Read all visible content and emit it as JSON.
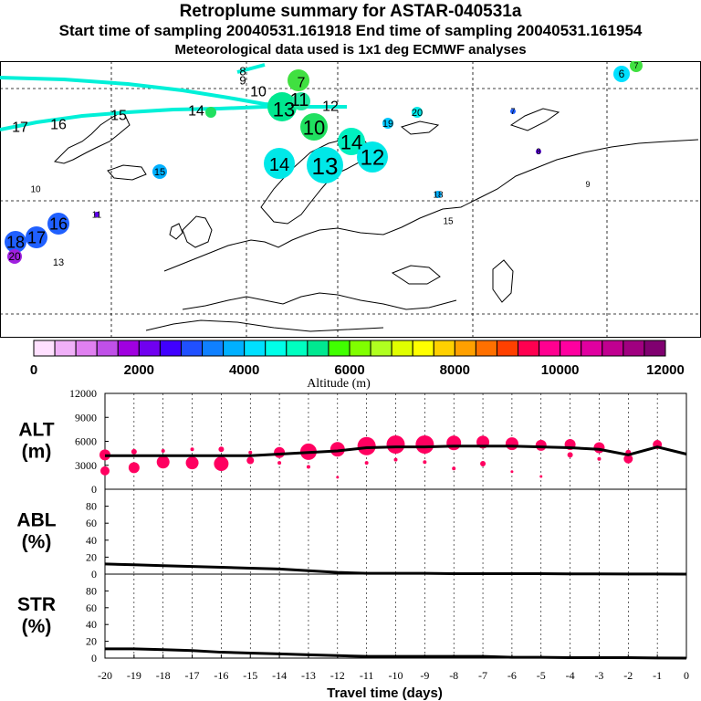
{
  "header": {
    "title": "Retroplume summary for ASTAR-040531a",
    "sampling": "Start time of sampling 20040531.161918      End time of sampling 20040531.161954",
    "met": "Meteorological data used is 1x1 deg ECMWF analyses"
  },
  "colorbar": {
    "label": "Altitude (m)",
    "ticks": [
      "0",
      "2000",
      "4000",
      "6000",
      "8000",
      "10000",
      "12000"
    ],
    "colors": [
      "#ffe0ff",
      "#f0b0f8",
      "#e080f0",
      "#c050e8",
      "#a000e0",
      "#7000f0",
      "#4000ff",
      "#2050ff",
      "#1080ff",
      "#00b0ff",
      "#00e0ff",
      "#00ffe8",
      "#00ffc0",
      "#00e890",
      "#40ff00",
      "#80ff00",
      "#b0ff20",
      "#e0ff00",
      "#ffff00",
      "#ffd000",
      "#ffa000",
      "#ff7000",
      "#ff4000",
      "#ff0050",
      "#ff0090",
      "#ff00a0",
      "#e000a0",
      "#c00090",
      "#a00080",
      "#800070"
    ]
  },
  "map": {
    "labels": [
      {
        "t": "17",
        "x": 22,
        "y": 139,
        "s": 16
      },
      {
        "t": "16",
        "x": 64,
        "y": 136,
        "s": 16
      },
      {
        "t": "15",
        "x": 130,
        "y": 126,
        "s": 16
      },
      {
        "t": "14",
        "x": 215,
        "y": 121,
        "s": 16
      },
      {
        "t": "8",
        "x": 266,
        "y": 78,
        "s": 13
      },
      {
        "t": "9",
        "x": 266,
        "y": 88,
        "s": 13
      },
      {
        "t": "10",
        "x": 283,
        "y": 100,
        "s": 16
      },
      {
        "t": "11",
        "x": 328,
        "y": 109,
        "s": 20
      },
      {
        "t": "12",
        "x": 362,
        "y": 116,
        "s": 16
      },
      {
        "t": "13",
        "x": 311,
        "y": 120,
        "s": 22
      },
      {
        "t": "7",
        "x": 330,
        "y": 90,
        "s": 16
      },
      {
        "t": "10",
        "x": 344,
        "y": 140,
        "s": 22
      },
      {
        "t": "14",
        "x": 385,
        "y": 156,
        "s": 22
      },
      {
        "t": "14",
        "x": 306,
        "y": 180,
        "s": 20
      },
      {
        "t": "13",
        "x": 356,
        "y": 182,
        "s": 26
      },
      {
        "t": "12",
        "x": 408,
        "y": 172,
        "s": 24
      },
      {
        "t": "19",
        "x": 425,
        "y": 135,
        "s": 11
      },
      {
        "t": "20",
        "x": 457,
        "y": 123,
        "s": 11
      },
      {
        "t": "15",
        "x": 175,
        "y": 188,
        "s": 11
      },
      {
        "t": "10",
        "x": 39,
        "y": 207,
        "s": 10
      },
      {
        "t": "11",
        "x": 106,
        "y": 235,
        "s": 10
      },
      {
        "t": "16",
        "x": 64,
        "y": 245,
        "s": 18
      },
      {
        "t": "17",
        "x": 40,
        "y": 260,
        "s": 18
      },
      {
        "t": "18",
        "x": 17,
        "y": 265,
        "s": 18
      },
      {
        "t": "20",
        "x": 16,
        "y": 281,
        "s": 12
      },
      {
        "t": "13",
        "x": 64,
        "y": 287,
        "s": 11
      },
      {
        "t": "18",
        "x": 480,
        "y": 213,
        "s": 10
      },
      {
        "t": "15",
        "x": 491,
        "y": 242,
        "s": 10
      },
      {
        "t": "6",
        "x": 681,
        "y": 81,
        "s": 12
      },
      {
        "t": "7",
        "x": 697,
        "y": 72,
        "s": 9
      },
      {
        "t": "7",
        "x": 562,
        "y": 122,
        "s": 9
      },
      {
        "t": "8",
        "x": 590,
        "y": 166,
        "s": 9
      },
      {
        "t": "9",
        "x": 644,
        "y": 202,
        "s": 9
      }
    ]
  },
  "chart_data": [
    {
      "type": "scatter",
      "panel": "ALT",
      "ylabel": "ALT\n(m)",
      "ylim": [
        0,
        12000
      ],
      "yticks": [
        "0",
        "3000",
        "6000",
        "9000",
        "12000"
      ],
      "xlim": [
        -20,
        0
      ],
      "line_x": [
        -20,
        -19,
        -18,
        -17,
        -16,
        -15,
        -14,
        -13,
        -12,
        -11,
        -10,
        -9,
        -8,
        -7,
        -6,
        -5,
        -4,
        -3,
        -2,
        -1,
        0
      ],
      "line_y": [
        4200,
        4200,
        4200,
        4200,
        4200,
        4200,
        4400,
        4600,
        4800,
        5200,
        5300,
        5300,
        5400,
        5400,
        5400,
        5300,
        5200,
        5000,
        4300,
        5300,
        4400
      ],
      "points": [
        {
          "x": -20,
          "y": 4300,
          "r": 6
        },
        {
          "x": -20,
          "y": 2300,
          "r": 5
        },
        {
          "x": -19,
          "y": 2700,
          "r": 6
        },
        {
          "x": -19,
          "y": 4700,
          "r": 3
        },
        {
          "x": -18,
          "y": 3400,
          "r": 7
        },
        {
          "x": -18,
          "y": 4800,
          "r": 2
        },
        {
          "x": -17,
          "y": 3300,
          "r": 7
        },
        {
          "x": -17,
          "y": 5000,
          "r": 2
        },
        {
          "x": -16,
          "y": 3200,
          "r": 8
        },
        {
          "x": -16,
          "y": 5000,
          "r": 3
        },
        {
          "x": -15,
          "y": 3600,
          "r": 4
        },
        {
          "x": -15,
          "y": 4600,
          "r": 2
        },
        {
          "x": -14,
          "y": 4600,
          "r": 6
        },
        {
          "x": -14,
          "y": 3300,
          "r": 2
        },
        {
          "x": -13,
          "y": 4700,
          "r": 9
        },
        {
          "x": -13,
          "y": 2800,
          "r": 2
        },
        {
          "x": -12,
          "y": 5000,
          "r": 8
        },
        {
          "x": -12,
          "y": 1500,
          "r": 1.5
        },
        {
          "x": -11,
          "y": 5400,
          "r": 10
        },
        {
          "x": -11,
          "y": 3300,
          "r": 2
        },
        {
          "x": -10,
          "y": 5600,
          "r": 10
        },
        {
          "x": -10,
          "y": 3700,
          "r": 2
        },
        {
          "x": -9,
          "y": 5600,
          "r": 10
        },
        {
          "x": -9,
          "y": 3400,
          "r": 2
        },
        {
          "x": -8,
          "y": 5800,
          "r": 8
        },
        {
          "x": -8,
          "y": 2600,
          "r": 2
        },
        {
          "x": -7,
          "y": 5900,
          "r": 7
        },
        {
          "x": -7,
          "y": 3200,
          "r": 3
        },
        {
          "x": -6,
          "y": 5700,
          "r": 7
        },
        {
          "x": -6,
          "y": 2200,
          "r": 1.5
        },
        {
          "x": -5,
          "y": 5500,
          "r": 6
        },
        {
          "x": -5,
          "y": 1600,
          "r": 1.5
        },
        {
          "x": -4,
          "y": 5600,
          "r": 6
        },
        {
          "x": -4,
          "y": 4300,
          "r": 3
        },
        {
          "x": -3,
          "y": 5200,
          "r": 6
        },
        {
          "x": -3,
          "y": 3800,
          "r": 2
        },
        {
          "x": -2,
          "y": 3800,
          "r": 5
        },
        {
          "x": -2,
          "y": 4600,
          "r": 3
        },
        {
          "x": -1,
          "y": 5600,
          "r": 5
        }
      ]
    },
    {
      "type": "line",
      "panel": "ABL",
      "ylabel": "ABL\n(%)",
      "ylim": [
        0,
        100
      ],
      "yticks": [
        "0",
        "20",
        "40",
        "60",
        "80"
      ],
      "x": [
        -20,
        -19,
        -18,
        -17,
        -16,
        -15,
        -14,
        -13,
        -12,
        -11,
        -10,
        -9,
        -8,
        -7,
        -6,
        -5,
        -4,
        -3,
        -2,
        -1,
        0
      ],
      "y": [
        12,
        11,
        10,
        9,
        8,
        7,
        6,
        4,
        2,
        1,
        1,
        1,
        0.5,
        0.5,
        0.5,
        0.5,
        0.3,
        0.3,
        0.2,
        0.2,
        0
      ]
    },
    {
      "type": "line",
      "panel": "STR",
      "ylabel": "STR\n(%)",
      "ylim": [
        0,
        100
      ],
      "yticks": [
        "0",
        "20",
        "40",
        "60",
        "80"
      ],
      "x": [
        -20,
        -19,
        -18,
        -17,
        -16,
        -15,
        -14,
        -13,
        -12,
        -11,
        -10,
        -9,
        -8,
        -7,
        -6,
        -5,
        -4,
        -3,
        -2,
        -1,
        0
      ],
      "y": [
        11,
        11,
        10,
        9,
        7,
        6,
        5,
        4,
        3,
        2,
        2,
        2,
        2,
        2,
        1,
        1,
        0.5,
        0.5,
        0.5,
        0.2,
        0
      ],
      "xlabel": "Travel time (days)",
      "xticks": [
        "-20",
        "-19",
        "-18",
        "-17",
        "-16",
        "-15",
        "-14",
        "-13",
        "-12",
        "-11",
        "-10",
        "-9",
        "-8",
        "-7",
        "-6",
        "-5",
        "-4",
        "-3",
        "-2",
        "-1",
        "0"
      ]
    }
  ]
}
